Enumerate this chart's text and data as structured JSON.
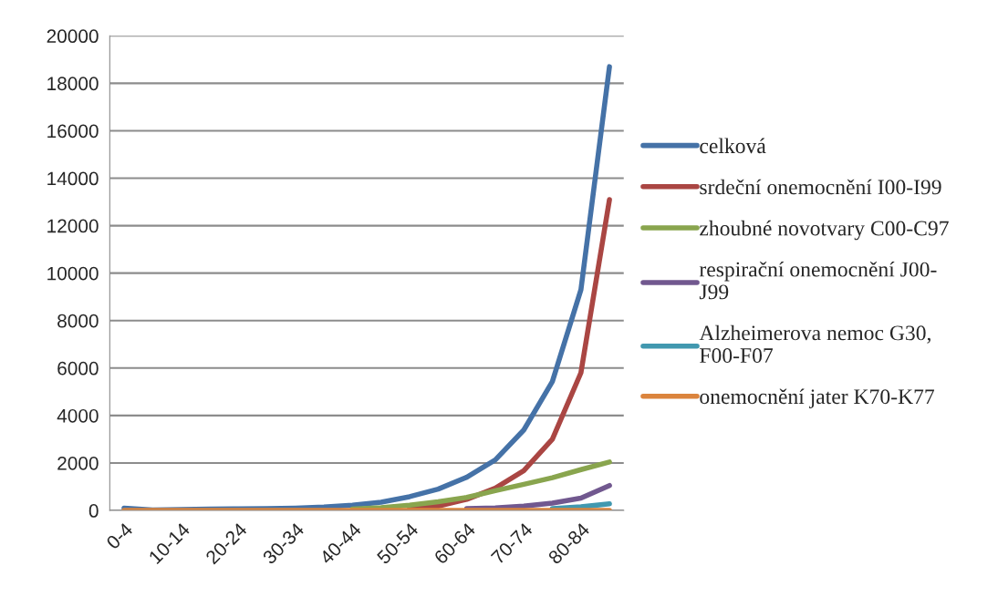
{
  "chart_data": {
    "type": "line",
    "categories": [
      "0-4",
      null,
      "10-14",
      null,
      "20-24",
      null,
      "30-34",
      null,
      "40-44",
      null,
      "50-54",
      null,
      "60-64",
      null,
      "70-74",
      null,
      "80-84",
      null
    ],
    "series": [
      {
        "name": "celková",
        "color": "#4572a7",
        "values": [
          100,
          20,
          40,
          60,
          70,
          80,
          100,
          140,
          220,
          350,
          580,
          900,
          1400,
          2130,
          3390,
          5430,
          9300,
          18700
        ]
      },
      {
        "name": "srdeční onemocnění I00-I99",
        "color": "#aa4643",
        "values": [
          null,
          null,
          null,
          null,
          null,
          null,
          null,
          null,
          null,
          null,
          100,
          180,
          470,
          940,
          1680,
          3000,
          5800,
          13100
        ]
      },
      {
        "name": "zhoubné novotvary C00-C97",
        "color": "#89a54e",
        "values": [
          null,
          null,
          null,
          null,
          null,
          null,
          null,
          null,
          60,
          120,
          220,
          370,
          550,
          830,
          1100,
          1380,
          1720,
          2040
        ]
      },
      {
        "name": "respirační onemocnění J00-J99",
        "color": "#71588f",
        "values": [
          null,
          null,
          null,
          null,
          null,
          null,
          null,
          null,
          null,
          null,
          null,
          null,
          80,
          110,
          180,
          310,
          520,
          1050
        ]
      },
      {
        "name": "Alzheimerova nemoc G30, F00-F07",
        "color": "#4198af",
        "values": [
          null,
          null,
          null,
          null,
          null,
          null,
          null,
          null,
          null,
          null,
          null,
          null,
          null,
          null,
          null,
          80,
          150,
          280
        ]
      },
      {
        "name": "onemocnění jater K70-K77",
        "color": "#db843d",
        "values": [
          0,
          0,
          0,
          0,
          0,
          0,
          0,
          0,
          0,
          0,
          0,
          0,
          0,
          0,
          0,
          0,
          0,
          0
        ]
      }
    ],
    "ylim": [
      0,
      20000
    ],
    "yticks": [
      0,
      2000,
      4000,
      6000,
      8000,
      10000,
      12000,
      14000,
      16000,
      18000,
      20000
    ],
    "grid": "y",
    "legend": "right",
    "marker": "none",
    "line_style": "solid"
  }
}
